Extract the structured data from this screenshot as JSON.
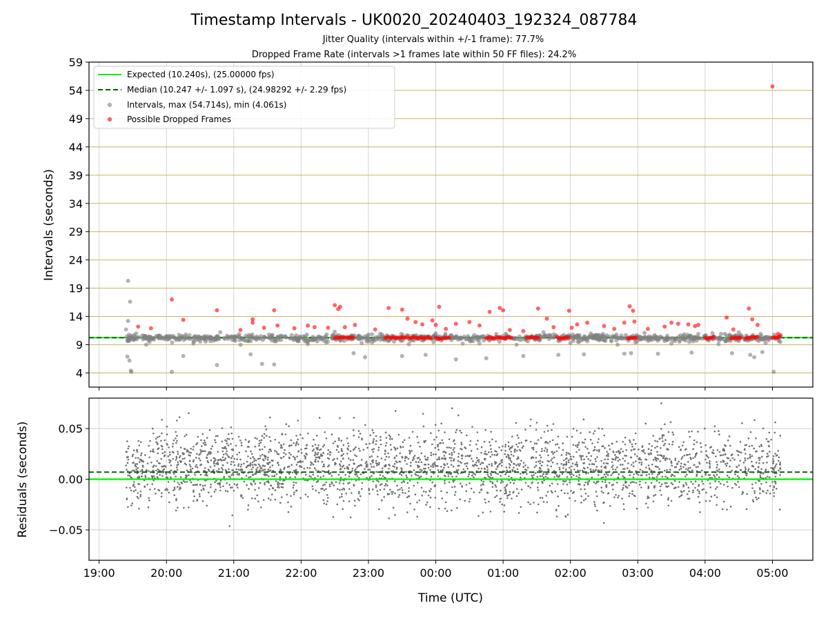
{
  "chart_data": [
    {
      "type": "scatter",
      "title": "Timestamp Intervals - UK0020_20240403_192324_087784",
      "subtitle_1": "Jitter Quality (intervals within +/-1 frame): 77.7%",
      "subtitle_2": "Dropped Frame Rate (intervals >1 frames late within 50 FF files): 24.2%",
      "ylabel": "Intervals (seconds)",
      "ylim": [
        1.5,
        59
      ],
      "yticks": [
        4,
        9,
        14,
        19,
        24,
        29,
        34,
        39,
        44,
        49,
        54,
        59
      ],
      "xlim_hours": [
        -0.15,
        10.6
      ],
      "expected_interval": 10.24,
      "median_interval": 10.247,
      "legend_position": "top-left",
      "legend": [
        "Expected (10.240s), (25.00000 fps)",
        "Median (10.247 +/- 1.097 s), (24.98292 +/- 2.29 fps)",
        "Intervals, max (54.714s), min (4.061s)",
        "Possible Dropped Frames"
      ],
      "series": [
        {
          "name": "Intervals, max (54.714s), min (4.061s)",
          "color": "#808080",
          "points": [
            [
              0.43,
              20.3
            ],
            [
              0.46,
              16.6
            ],
            [
              0.43,
              13.2
            ],
            [
              0.4,
              11.7
            ],
            [
              0.42,
              6.9
            ],
            [
              0.45,
              6.2
            ],
            [
              0.47,
              4.4
            ],
            [
              0.48,
              4.2
            ],
            [
              1.08,
              4.2
            ],
            [
              1.25,
              7.0
            ],
            [
              1.75,
              5.4
            ],
            [
              2.25,
              7.3
            ],
            [
              2.42,
              5.6
            ],
            [
              2.6,
              5.5
            ],
            [
              3.78,
              7.5
            ],
            [
              3.95,
              6.8
            ],
            [
              4.5,
              7.0
            ],
            [
              4.85,
              7.2
            ],
            [
              5.3,
              6.4
            ],
            [
              5.75,
              6.6
            ],
            [
              6.3,
              7.0
            ],
            [
              6.82,
              7.2
            ],
            [
              7.2,
              7.3
            ],
            [
              7.8,
              7.4
            ],
            [
              7.9,
              7.5
            ],
            [
              8.3,
              7.4
            ],
            [
              8.8,
              7.6
            ],
            [
              9.4,
              7.5
            ],
            [
              9.67,
              7.2
            ],
            [
              9.73,
              6.8
            ],
            [
              9.85,
              7.7
            ],
            [
              10.02,
              4.2
            ],
            [
              0.55,
              11.0
            ],
            [
              0.7,
              9.0
            ],
            [
              1.0,
              10.5
            ],
            [
              1.4,
              9.2
            ],
            [
              1.8,
              11.2
            ],
            [
              2.1,
              9.0
            ],
            [
              2.7,
              10.6
            ],
            [
              3.1,
              9.1
            ],
            [
              3.5,
              11.3
            ],
            [
              3.9,
              9.3
            ],
            [
              4.2,
              10.8
            ],
            [
              4.6,
              9.1
            ],
            [
              5.0,
              11.0
            ],
            [
              5.4,
              9.2
            ],
            [
              5.9,
              10.9
            ],
            [
              6.2,
              9.0
            ],
            [
              6.6,
              11.2
            ],
            [
              7.0,
              9.3
            ],
            [
              7.4,
              10.7
            ],
            [
              7.7,
              9.0
            ],
            [
              8.1,
              11.1
            ],
            [
              8.5,
              9.2
            ],
            [
              8.9,
              10.9
            ],
            [
              9.2,
              9.1
            ],
            [
              9.5,
              11.2
            ],
            [
              9.9,
              9.3
            ],
            [
              10.05,
              10.0
            ]
          ]
        },
        {
          "name": "Possible Dropped Frames",
          "color": "#ff0000",
          "points": [
            [
              0.58,
              12.2
            ],
            [
              0.77,
              11.9
            ],
            [
              1.08,
              17.0
            ],
            [
              1.25,
              13.4
            ],
            [
              1.75,
              15.1
            ],
            [
              2.1,
              11.6
            ],
            [
              2.28,
              13.5
            ],
            [
              2.28,
              12.9
            ],
            [
              2.45,
              12.0
            ],
            [
              2.6,
              15.1
            ],
            [
              2.65,
              12.4
            ],
            [
              2.9,
              11.9
            ],
            [
              3.1,
              12.4
            ],
            [
              3.2,
              12.1
            ],
            [
              3.4,
              12.0
            ],
            [
              3.5,
              16.0
            ],
            [
              3.55,
              15.3
            ],
            [
              3.58,
              15.7
            ],
            [
              3.65,
              12.1
            ],
            [
              3.8,
              12.5
            ],
            [
              4.1,
              11.7
            ],
            [
              4.3,
              15.5
            ],
            [
              4.5,
              15.2
            ],
            [
              4.58,
              13.6
            ],
            [
              4.7,
              13.0
            ],
            [
              4.8,
              12.6
            ],
            [
              4.95,
              13.3
            ],
            [
              5.05,
              15.7
            ],
            [
              5.0,
              12.5
            ],
            [
              5.15,
              11.8
            ],
            [
              5.3,
              12.7
            ],
            [
              5.5,
              13.0
            ],
            [
              5.65,
              12.4
            ],
            [
              5.8,
              14.8
            ],
            [
              5.95,
              15.5
            ],
            [
              6.0,
              15.1
            ],
            [
              6.1,
              11.6
            ],
            [
              6.3,
              11.4
            ],
            [
              6.52,
              15.4
            ],
            [
              6.65,
              13.6
            ],
            [
              6.75,
              12.1
            ],
            [
              6.98,
              15.0
            ],
            [
              7.02,
              12.0
            ],
            [
              7.1,
              12.6
            ],
            [
              7.25,
              12.9
            ],
            [
              7.5,
              12.3
            ],
            [
              7.65,
              11.8
            ],
            [
              7.8,
              12.9
            ],
            [
              7.88,
              15.8
            ],
            [
              7.93,
              15.0
            ],
            [
              7.95,
              13.1
            ],
            [
              8.15,
              11.8
            ],
            [
              8.4,
              12.2
            ],
            [
              8.5,
              12.9
            ],
            [
              8.6,
              12.7
            ],
            [
              8.75,
              12.6
            ],
            [
              8.85,
              12.3
            ],
            [
              8.9,
              12.5
            ],
            [
              9.32,
              13.8
            ],
            [
              9.42,
              11.7
            ],
            [
              9.65,
              15.4
            ],
            [
              9.7,
              13.5
            ],
            [
              9.78,
              12.5
            ],
            [
              10.08,
              10.9
            ],
            [
              10.12,
              10.7
            ],
            [
              10.0,
              54.7
            ]
          ],
          "bands": [
            [
              3.5,
              3.78
            ],
            [
              4.25,
              4.5
            ],
            [
              4.5,
              4.95
            ],
            [
              5.0,
              5.22
            ],
            [
              5.75,
              6.15
            ],
            [
              6.35,
              6.55
            ],
            [
              6.8,
              7.0
            ],
            [
              7.85,
              8.0
            ],
            [
              9.0,
              9.15
            ],
            [
              9.38,
              9.55
            ],
            [
              9.6,
              9.8
            ],
            [
              10.0,
              10.12
            ]
          ]
        }
      ]
    },
    {
      "type": "scatter",
      "xlabel": "Time (UTC)",
      "ylabel": "Residuals (seconds)",
      "ylim": [
        -0.08,
        0.08
      ],
      "yticks": [
        -0.05,
        0.0,
        0.05
      ],
      "ytick_labels": [
        "−0.05",
        "0.00",
        "0.05"
      ],
      "xticks": [
        "19:00",
        "20:00",
        "21:00",
        "22:00",
        "23:00",
        "00:00",
        "01:00",
        "02:00",
        "03:00",
        "04:00",
        "05:00"
      ],
      "expected_residual": 0.0,
      "median_residual": 0.007,
      "series": [
        {
          "name": "",
          "color": "#707070",
          "x_range_hours": [
            0.4,
            10.12
          ],
          "count": 2800
        }
      ]
    }
  ]
}
